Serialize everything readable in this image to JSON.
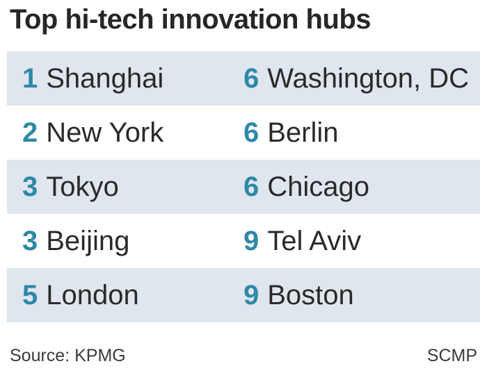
{
  "chart_data": {
    "type": "table",
    "title": "Top hi-tech innovation hubs",
    "columns": [
      [
        {
          "rank": "1",
          "city": "Shanghai"
        },
        {
          "rank": "2",
          "city": "New York"
        },
        {
          "rank": "3",
          "city": "Tokyo"
        },
        {
          "rank": "3",
          "city": "Beijing"
        },
        {
          "rank": "5",
          "city": "London"
        }
      ],
      [
        {
          "rank": "6",
          "city": "Washington, DC"
        },
        {
          "rank": "6",
          "city": "Berlin"
        },
        {
          "rank": "6",
          "city": "Chicago"
        },
        {
          "rank": "9",
          "city": "Tel Aviv"
        },
        {
          "rank": "9",
          "city": "Boston"
        }
      ]
    ],
    "shaded_rows": [
      true,
      false,
      true,
      false,
      true
    ],
    "colors": {
      "rank": "#2f88a8",
      "shaded_row": "#dfe6ed"
    }
  },
  "footer": {
    "source": "Source: KPMG",
    "credit": "SCMP"
  }
}
